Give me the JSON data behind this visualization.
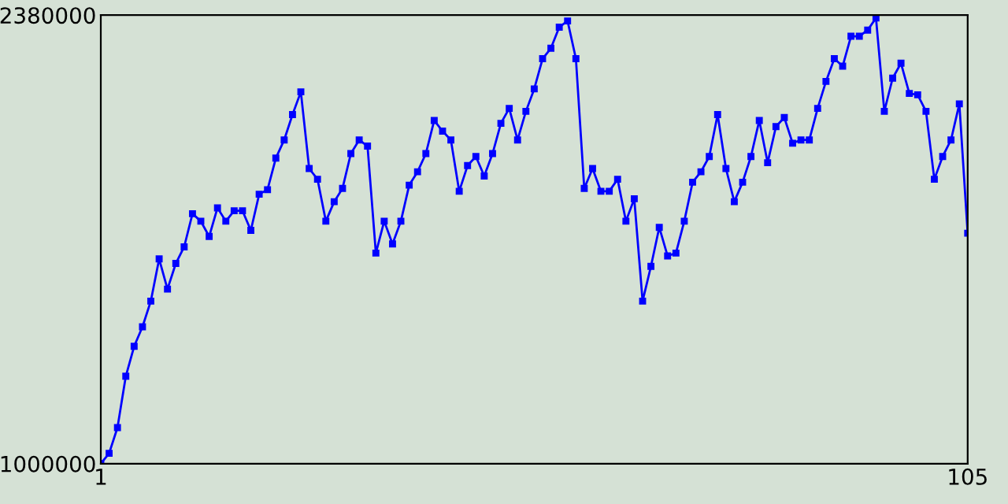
{
  "chart_data": {
    "type": "line",
    "marker": "square",
    "line_style": "solid",
    "grid": false,
    "legend": false,
    "x": [
      1,
      2,
      3,
      4,
      5,
      6,
      7,
      8,
      9,
      10,
      11,
      12,
      13,
      14,
      15,
      16,
      17,
      18,
      19,
      20,
      21,
      22,
      23,
      24,
      25,
      26,
      27,
      28,
      29,
      30,
      31,
      32,
      33,
      34,
      35,
      36,
      37,
      38,
      39,
      40,
      41,
      42,
      43,
      44,
      45,
      46,
      47,
      48,
      49,
      50,
      51,
      52,
      53,
      54,
      55,
      56,
      57,
      58,
      59,
      60,
      61,
      62,
      63,
      64,
      65,
      66,
      67,
      68,
      69,
      70,
      71,
      72,
      73,
      74,
      75,
      76,
      77,
      78,
      79,
      80,
      81,
      82,
      83,
      84,
      85,
      86,
      87,
      88,
      89,
      90,
      91,
      92,
      93,
      94,
      95,
      96,
      97,
      98,
      99,
      100,
      101,
      102,
      103,
      104,
      105
    ],
    "series": [
      {
        "color": "#0000ff",
        "values": [
          1000000,
          1032000,
          1111000,
          1269000,
          1361000,
          1421000,
          1500000,
          1630000,
          1537000,
          1616000,
          1667000,
          1769000,
          1746000,
          1699000,
          1787000,
          1746000,
          1778000,
          1778000,
          1718000,
          1829000,
          1843000,
          1940000,
          1996000,
          2074000,
          2144000,
          1908000,
          1875000,
          1746000,
          1806000,
          1847000,
          1954000,
          1996000,
          1977000,
          1648000,
          1746000,
          1676000,
          1746000,
          1857000,
          1898000,
          1954000,
          2056000,
          2023000,
          1996000,
          1838000,
          1917000,
          1945000,
          1885000,
          1954000,
          2047000,
          2093000,
          1996000,
          2084000,
          2153000,
          2246000,
          2278000,
          2343000,
          2362000,
          2246000,
          1847000,
          1908000,
          1838000,
          1838000,
          1875000,
          1746000,
          1815000,
          1500000,
          1607000,
          1727000,
          1639000,
          1648000,
          1746000,
          1866000,
          1898000,
          1945000,
          2074000,
          1908000,
          1806000,
          1866000,
          1945000,
          2056000,
          1926000,
          2037000,
          2065000,
          1986000,
          1996000,
          1996000,
          2093000,
          2176000,
          2246000,
          2223000,
          2315000,
          2315000,
          2334000,
          2371000,
          2084000,
          2186000,
          2232000,
          2139000,
          2135000,
          2084000,
          1875000,
          1945000,
          1996000,
          2107000,
          1709000
        ]
      }
    ],
    "xlim": [
      1,
      105
    ],
    "xticks": [
      1,
      105
    ],
    "ylim": [
      1000000,
      2380000
    ],
    "yticks": [
      1000000,
      2380000
    ]
  }
}
